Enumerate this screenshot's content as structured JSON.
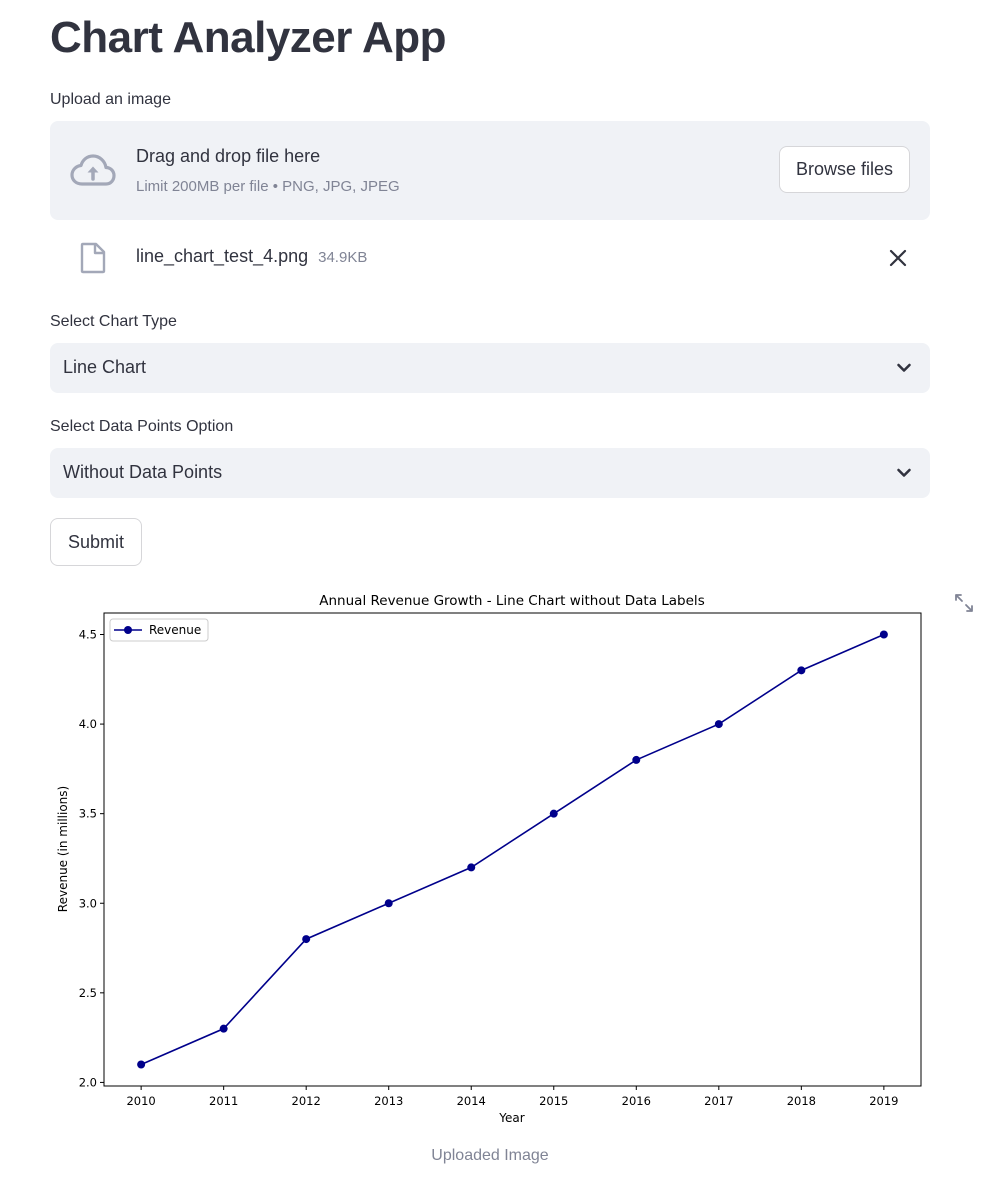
{
  "app": {
    "title": "Chart Analyzer App"
  },
  "uploader": {
    "label": "Upload an image",
    "drop_title": "Drag and drop file here",
    "drop_limit": "Limit 200MB per file • PNG, JPG, JPEG",
    "browse_label": "Browse files",
    "file": {
      "name": "line_chart_test_4.png",
      "size": "34.9KB"
    }
  },
  "chart_type_select": {
    "label": "Select Chart Type",
    "value": "Line Chart"
  },
  "data_points_select": {
    "label": "Select Data Points Option",
    "value": "Without Data Points"
  },
  "submit": {
    "label": "Submit"
  },
  "image": {
    "caption": "Uploaded Image"
  },
  "colors": {
    "accent_bg": "#f0f2f6",
    "text": "#31333f",
    "muted": "#808495",
    "series": "#00008b"
  },
  "chart_data": {
    "type": "line",
    "title": "Annual Revenue Growth - Line Chart without Data Labels",
    "xlabel": "Year",
    "ylabel": "Revenue (in millions)",
    "x": [
      2010,
      2011,
      2012,
      2013,
      2014,
      2015,
      2016,
      2017,
      2018,
      2019
    ],
    "series": [
      {
        "name": "Revenue",
        "values": [
          2.1,
          2.3,
          2.8,
          3.0,
          3.2,
          3.5,
          3.8,
          4.0,
          4.3,
          4.5
        ],
        "marker": "circle",
        "color": "#00008b"
      }
    ],
    "yticks": [
      "2.0",
      "2.5",
      "3.0",
      "3.5",
      "4.0",
      "4.5"
    ],
    "ylim": [
      1.98,
      4.62
    ],
    "xlim": [
      2009.55,
      2019.45
    ],
    "grid": false,
    "legend_position": "top-left"
  }
}
